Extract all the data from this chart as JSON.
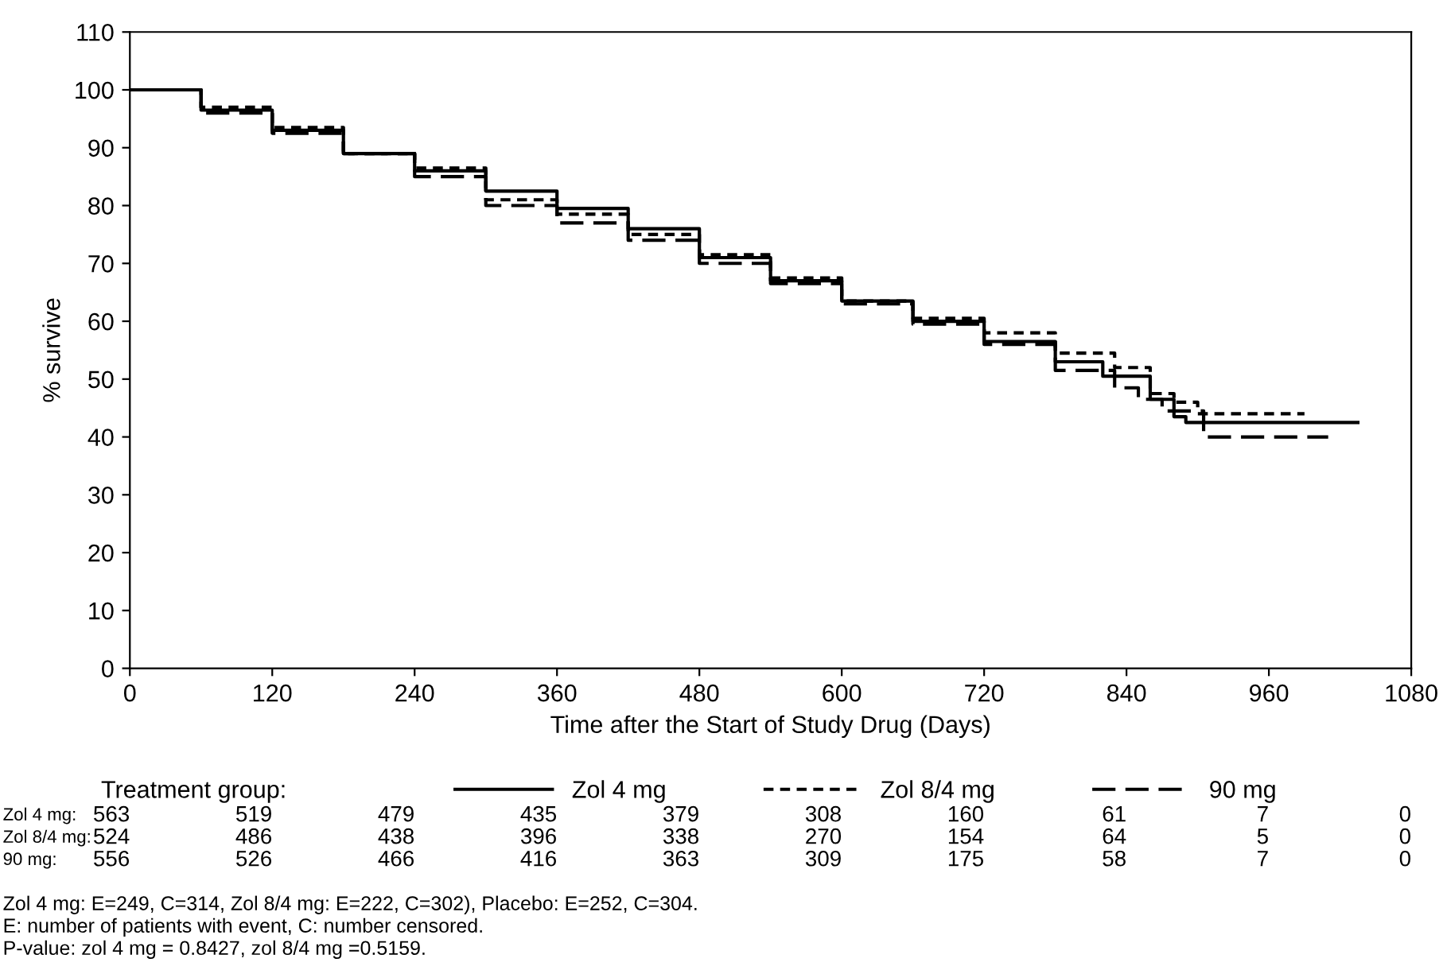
{
  "chart_data": {
    "type": "step",
    "xlabel": "Time after the Start of Study Drug (Days)",
    "ylabel": "% survive",
    "legend_title": "Treatment group:",
    "legend": "bottom",
    "xlim": [
      0,
      1080
    ],
    "xticks": [
      0,
      120,
      240,
      360,
      480,
      600,
      720,
      840,
      960,
      1080
    ],
    "ylim": [
      0,
      110
    ],
    "yticks": [
      0,
      10,
      20,
      30,
      40,
      50,
      60,
      70,
      80,
      90,
      100,
      110
    ],
    "grid": false,
    "series": [
      {
        "name": "Zol 4 mg",
        "color": "#000000",
        "line_style": "solid",
        "x": [
          0,
          60,
          120,
          180,
          240,
          300,
          360,
          420,
          480,
          540,
          600,
          660,
          720,
          780,
          820,
          860,
          880,
          890,
          1035
        ],
        "values": [
          100,
          96.5,
          93,
          89,
          86,
          82.5,
          79.5,
          76,
          71,
          67,
          63.5,
          60,
          56.5,
          53,
          50.5,
          46.5,
          43.5,
          42.5,
          42.5
        ]
      },
      {
        "name": "Zol 8/4 mg",
        "color": "#000000",
        "line_style": "dotted",
        "x": [
          0,
          60,
          120,
          180,
          240,
          300,
          360,
          420,
          480,
          540,
          600,
          660,
          720,
          780,
          830,
          860,
          880,
          900,
          990
        ],
        "values": [
          100,
          97,
          93.5,
          89,
          86.5,
          81,
          78.5,
          75,
          71.5,
          67.5,
          63.5,
          60.5,
          58,
          54.5,
          52,
          47.5,
          46,
          44,
          44
        ]
      },
      {
        "name": "90 mg",
        "color": "#000000",
        "line_style": "dashed",
        "x": [
          0,
          60,
          120,
          180,
          240,
          300,
          360,
          420,
          480,
          540,
          600,
          660,
          720,
          780,
          830,
          850,
          870,
          905,
          1010
        ],
        "values": [
          100,
          96,
          92.5,
          89,
          85,
          80,
          77,
          74,
          70,
          66.5,
          63,
          59.5,
          56,
          51.5,
          48.5,
          46.5,
          44.5,
          40,
          40
        ]
      }
    ],
    "annotations": [
      "Zol 4 mg:\t563\t519\t479\t435\t379\t308\t160\t61\t7\t0",
      "Zol 8/4 mg:\t524\t486\t438\t396\t338\t270\t154\t64\t5\t0",
      "90 mg:\t556\t526\t466\t416\t363\t309\t175\t58\t7\t0",
      "Zol 4 mg: E=249, C=314, Zol 8/4 mg: E=222, C=302), Placebo: E=252, C=304.",
      "E: number of patients with event, C: number censored.",
      "P-value: zol 4 mg = 0.8427, zol 8/4 mg =0.5159."
    ]
  }
}
